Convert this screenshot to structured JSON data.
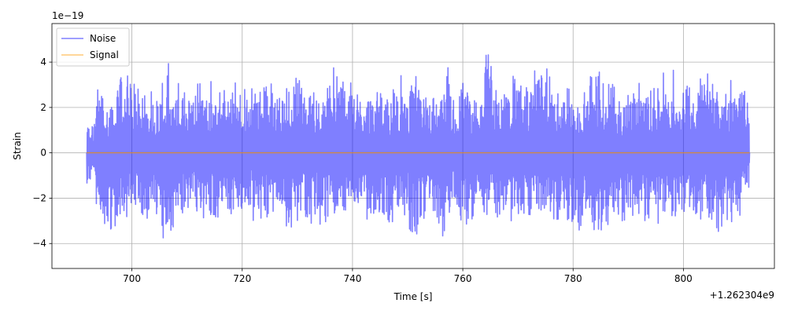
{
  "chart_data": {
    "type": "line",
    "title": "",
    "xlabel": "Time [s]",
    "ylabel": "Strain",
    "x_offset_label": "+1.262304e9",
    "y_scale_label": "1e−19",
    "xlim": [
      685.5,
      816.5
    ],
    "ylim": [
      -5.1,
      5.7
    ],
    "x_ticks": [
      700,
      720,
      740,
      760,
      780,
      800
    ],
    "y_ticks": [
      -4,
      -2,
      0,
      2,
      4
    ],
    "x_tick_labels": [
      "700",
      "720",
      "740",
      "760",
      "780",
      "800"
    ],
    "y_tick_labels": [
      "−4",
      "−2",
      "0",
      "2",
      "4"
    ],
    "grid": true,
    "legend_position": "top-left",
    "series": [
      {
        "name": "Noise",
        "color": "#0000ff",
        "x_range": [
          691.8,
          812.0
        ],
        "envelope_max": [
          1.6,
          3.5,
          2.6,
          3.3,
          4.4,
          3.7,
          3.7,
          3.5,
          3.1,
          4.1,
          3.1,
          3.8,
          3.0,
          4.1,
          3.0,
          3.3,
          3.5,
          3.3,
          3.3,
          3.5,
          3.4,
          3.5,
          3.8,
          3.2,
          3.6,
          4.6,
          3.0,
          3.3,
          2.8,
          4.0,
          4.3,
          3.7,
          3.2,
          3.1,
          3.2,
          3.2,
          2.8,
          3.6,
          3.0,
          4.1,
          3.4,
          3.2,
          3.0,
          4.2,
          2.9,
          3.3,
          3.1,
          3.4,
          5.2,
          3.5,
          3.1,
          4.1,
          3.7,
          3.7,
          4.1,
          4.4,
          3.2,
          3.3,
          3.4,
          2.9,
          4.1,
          4.4,
          3.3,
          4.3,
          3.0,
          3.2,
          4.0,
          3.2,
          3.4,
          3.8,
          3.7,
          3.3,
          3.9,
          3.2,
          4.4,
          4.3,
          3.4,
          3.6,
          3.1,
          3.4
        ],
        "envelope_min": [
          -1.6,
          -3.2,
          -4.1,
          -3.5,
          -3.4,
          -3.2,
          -3.4,
          -3.6,
          -3.3,
          -4.5,
          -4.3,
          -3.6,
          -3.1,
          -3.9,
          -3.6,
          -3.5,
          -3.0,
          -3.5,
          -3.3,
          -3.0,
          -3.8,
          -3.4,
          -3.5,
          -3.3,
          -4.3,
          -3.5,
          -3.4,
          -3.4,
          -3.9,
          -3.4,
          -3.3,
          -3.5,
          -3.0,
          -3.6,
          -3.2,
          -3.3,
          -3.8,
          -3.6,
          -3.4,
          -4.3,
          -3.5,
          -3.6,
          -3.8,
          -3.8,
          -3.1,
          -3.8,
          -3.6,
          -3.2,
          -3.6,
          -3.5,
          -3.3,
          -3.6,
          -3.4,
          -3.4,
          -3.3,
          -3.2,
          -3.6,
          -3.0,
          -3.8,
          -4.1,
          -3.4,
          -4.3,
          -4.3,
          -3.3,
          -3.6,
          -3.5,
          -3.4,
          -3.7,
          -3.9,
          -3.5,
          -3.4,
          -3.8,
          -3.3,
          -3.5,
          -3.6,
          -3.8,
          -4.2,
          -3.9,
          -3.3,
          -1.6
        ]
      },
      {
        "name": "Signal",
        "color": "#ff9900",
        "x": [
          691.8,
          812.0
        ],
        "y": [
          0.0,
          0.0
        ]
      }
    ]
  }
}
